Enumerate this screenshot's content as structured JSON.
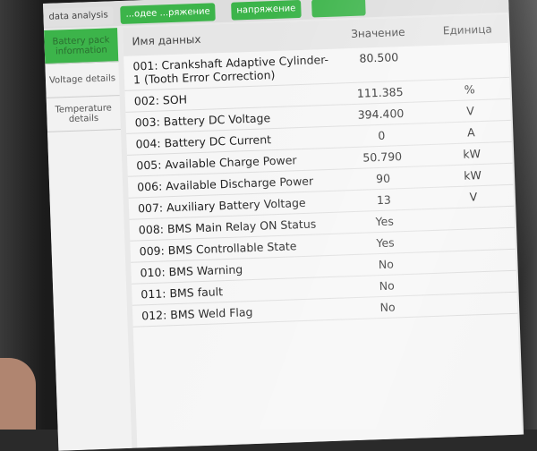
{
  "top_tabs": [
    "data analysis",
    "...одее ...ряжение",
    "напряжение",
    ""
  ],
  "sidebar": {
    "items": [
      {
        "label": "Battery pack information",
        "active": true
      },
      {
        "label": "Voltage details"
      },
      {
        "label": "Temperature details"
      }
    ]
  },
  "table": {
    "headers": [
      "Имя данных",
      "Значение",
      "Единица"
    ],
    "rows": [
      {
        "name": "001: Crankshaft Adaptive Cylinder-1 (Tooth Error Correction)",
        "value": "80.500",
        "unit": ""
      },
      {
        "name": "002: SOH",
        "value": "111.385",
        "unit": "%"
      },
      {
        "name": "003: Battery DC Voltage",
        "value": "394.400",
        "unit": "V"
      },
      {
        "name": "004: Battery DC Current",
        "value": "0",
        "unit": "A"
      },
      {
        "name": "005: Available Charge Power",
        "value": "50.790",
        "unit": "kW"
      },
      {
        "name": "006: Available Discharge Power",
        "value": "90",
        "unit": "kW"
      },
      {
        "name": "007: Auxiliary Battery Voltage",
        "value": "13",
        "unit": "V"
      },
      {
        "name": "008: BMS Main Relay ON Status",
        "value": "Yes",
        "unit": ""
      },
      {
        "name": "009: BMS Controllable State",
        "value": "Yes",
        "unit": ""
      },
      {
        "name": "010: BMS Warning",
        "value": "No",
        "unit": ""
      },
      {
        "name": "011: BMS fault",
        "value": "No",
        "unit": ""
      },
      {
        "name": "012: BMS Weld Flag",
        "value": "No",
        "unit": ""
      }
    ]
  },
  "colors": {
    "accent": "#3cb44a"
  }
}
